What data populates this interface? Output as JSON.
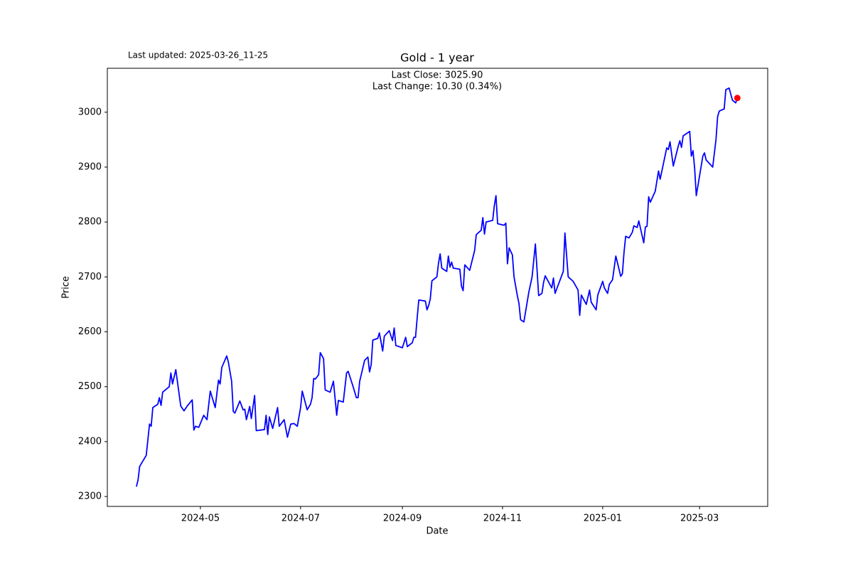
{
  "chart_data": {
    "type": "line",
    "title": "Gold - 1 year",
    "subtitle": "Last updated: 2025-03-26_11-25",
    "annotations": [
      "Last Close: 3025.90",
      "Last Change: 10.30 (0.34%)"
    ],
    "xlabel": "Date",
    "ylabel": "Price",
    "color": "blue",
    "marker_color": "red",
    "xlim": [
      4.3,
      406.5
    ],
    "ylim": [
      2282,
      3080
    ],
    "xticks": [
      {
        "value": 61,
        "label": "2024-05"
      },
      {
        "value": 122,
        "label": "2024-07"
      },
      {
        "value": 184,
        "label": "2024-09"
      },
      {
        "value": 245,
        "label": "2024-11"
      },
      {
        "value": 306,
        "label": "2025-01"
      },
      {
        "value": 365,
        "label": "2025-03"
      }
    ],
    "yticks": [
      2300,
      2400,
      2500,
      2600,
      2700,
      2800,
      2900,
      3000
    ],
    "x": [
      22,
      23,
      24,
      28,
      30,
      31,
      32,
      35,
      36,
      37,
      38,
      42,
      43,
      44,
      46,
      49,
      51,
      53,
      56,
      57,
      58,
      60,
      63,
      65,
      67,
      70,
      72,
      73,
      74,
      77,
      78,
      80,
      81,
      82,
      85,
      87,
      88,
      89,
      91,
      92,
      94,
      95,
      100,
      101,
      102,
      103,
      105,
      108,
      109,
      112,
      114,
      116,
      118,
      120,
      122,
      123,
      126,
      128,
      129,
      130,
      131,
      133,
      134,
      136,
      137,
      140,
      142,
      144,
      145,
      148,
      150,
      151,
      154,
      156,
      157,
      158,
      161,
      163,
      164,
      165,
      166,
      169,
      170,
      172,
      173,
      176,
      178,
      179,
      180,
      184,
      186,
      187,
      190,
      191,
      192,
      193,
      194,
      198,
      199,
      200,
      201,
      202,
      205,
      206,
      207,
      208,
      211,
      212,
      213,
      214,
      215,
      219,
      220,
      221,
      222,
      225,
      228,
      229,
      232,
      233,
      234,
      235,
      239,
      240,
      241,
      242,
      246,
      247,
      248,
      249,
      251,
      252,
      254,
      255,
      256,
      258,
      261,
      263,
      265,
      266,
      267,
      269,
      270,
      271,
      275,
      276,
      277,
      282,
      283,
      285,
      288,
      291,
      292,
      293,
      296,
      298,
      299,
      302,
      303,
      306,
      307,
      309,
      310,
      312,
      314,
      317,
      318,
      319,
      320,
      322,
      324,
      325,
      327,
      328,
      331,
      332,
      333,
      334,
      335,
      338,
      340,
      341,
      345,
      346,
      347,
      349,
      352,
      353,
      354,
      355,
      359,
      360,
      361,
      362,
      363,
      367,
      368,
      369,
      373,
      375,
      376,
      377,
      380,
      381,
      383,
      385,
      387,
      388
    ],
    "values": [
      2318,
      2330,
      2355,
      2375,
      2432,
      2428,
      2462,
      2468,
      2480,
      2466,
      2490,
      2500,
      2525,
      2505,
      2531,
      2465,
      2456,
      2465,
      2476,
      2421,
      2428,
      2426,
      2448,
      2440,
      2492,
      2462,
      2512,
      2505,
      2535,
      2556,
      2545,
      2510,
      2455,
      2452,
      2474,
      2458,
      2459,
      2440,
      2464,
      2442,
      2484,
      2420,
      2422,
      2448,
      2413,
      2445,
      2424,
      2462,
      2428,
      2440,
      2408,
      2432,
      2433,
      2428,
      2462,
      2492,
      2458,
      2468,
      2480,
      2515,
      2514,
      2522,
      2562,
      2551,
      2494,
      2490,
      2510,
      2448,
      2475,
      2472,
      2525,
      2528,
      2500,
      2480,
      2480,
      2510,
      2548,
      2554,
      2527,
      2540,
      2585,
      2588,
      2598,
      2565,
      2592,
      2602,
      2584,
      2607,
      2575,
      2571,
      2590,
      2573,
      2580,
      2590,
      2590,
      2625,
      2658,
      2656,
      2640,
      2648,
      2660,
      2693,
      2700,
      2725,
      2742,
      2716,
      2710,
      2738,
      2718,
      2727,
      2716,
      2714,
      2683,
      2675,
      2722,
      2712,
      2748,
      2777,
      2785,
      2808,
      2778,
      2800,
      2803,
      2830,
      2848,
      2797,
      2794,
      2798,
      2724,
      2753,
      2740,
      2700,
      2666,
      2652,
      2622,
      2618,
      2672,
      2700,
      2760,
      2714,
      2666,
      2670,
      2690,
      2702,
      2680,
      2698,
      2670,
      2710,
      2780,
      2700,
      2692,
      2676,
      2630,
      2667,
      2650,
      2676,
      2654,
      2640,
      2667,
      2692,
      2680,
      2670,
      2686,
      2695,
      2738,
      2701,
      2706,
      2745,
      2774,
      2771,
      2781,
      2793,
      2790,
      2802,
      2762,
      2791,
      2792,
      2846,
      2836,
      2856,
      2893,
      2878,
      2935,
      2932,
      2946,
      2902,
      2938,
      2948,
      2936,
      2957,
      2965,
      2920,
      2930,
      2898,
      2848,
      2920,
      2926,
      2913,
      2900,
      2950,
      2992,
      3002,
      3006,
      3041,
      3044,
      3022,
      3017,
      3025.9
    ]
  }
}
